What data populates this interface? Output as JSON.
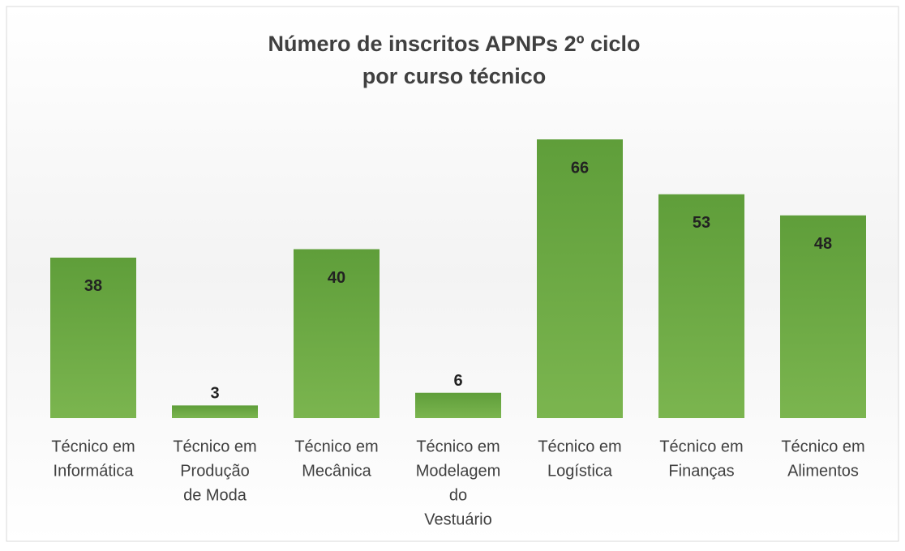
{
  "chart_data": {
    "type": "bar",
    "title": [
      "Número de inscritos APNPs 2º ciclo",
      "por curso técnico"
    ],
    "categories": [
      [
        "Técnico em",
        "Informática"
      ],
      [
        "Técnico em",
        "Produção",
        "de Moda"
      ],
      [
        "Técnico em",
        "Mecânica"
      ],
      [
        "Técnico em",
        "Modelagem",
        "do",
        "Vestuário"
      ],
      [
        "Técnico em",
        "Logística"
      ],
      [
        "Técnico em",
        "Finanças"
      ],
      [
        "Técnico em",
        "Alimentos"
      ]
    ],
    "values": [
      38,
      3,
      40,
      6,
      66,
      53,
      48
    ],
    "color": "#70ad47"
  }
}
